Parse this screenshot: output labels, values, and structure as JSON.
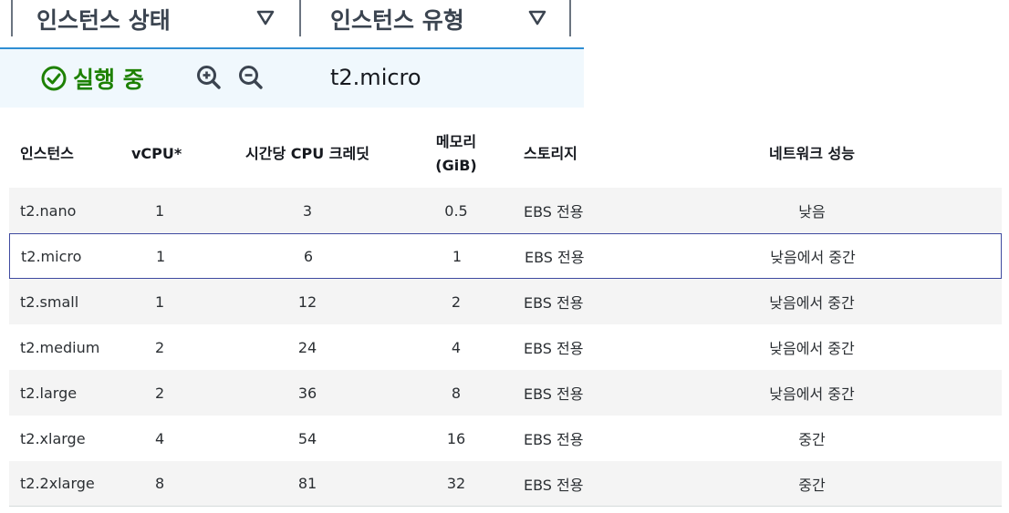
{
  "header": {
    "filters": [
      {
        "label": "인스턴스 상태"
      },
      {
        "label": "인스턴스 유형"
      }
    ]
  },
  "selected_instance": {
    "status": "실행 중",
    "status_color": "#1d8102",
    "status_icon": "check-circle-icon",
    "zoom_in_icon": "zoom-in-icon",
    "zoom_out_icon": "zoom-out-icon",
    "type": "t2.micro"
  },
  "table": {
    "columns": [
      {
        "label": "인스턴스"
      },
      {
        "label": "vCPU*"
      },
      {
        "label": "시간당 CPU 크레딧"
      },
      {
        "label": "메모리 (GiB)",
        "line1": "메모리",
        "line2": "(GiB)"
      },
      {
        "label": "스토리지"
      },
      {
        "label": "네트워크 성능"
      }
    ],
    "rows": [
      [
        "t2.nano",
        "1",
        "3",
        "0.5",
        "EBS 전용",
        "낮음"
      ],
      [
        "t2.micro",
        "1",
        "6",
        "1",
        "EBS 전용",
        "낮음에서 중간"
      ],
      [
        "t2.small",
        "1",
        "12",
        "2",
        "EBS 전용",
        "낮음에서 중간"
      ],
      [
        "t2.medium",
        "2",
        "24",
        "4",
        "EBS 전용",
        "낮음에서 중간"
      ],
      [
        "t2.large",
        "2",
        "36",
        "8",
        "EBS 전용",
        "낮음에서 중간"
      ],
      [
        "t2.xlarge",
        "4",
        "54",
        "16",
        "EBS 전용",
        "중간"
      ],
      [
        "t2.2xlarge",
        "8",
        "81",
        "32",
        "EBS 전용",
        "중간"
      ]
    ],
    "selected_row_index": 1
  },
  "colors": {
    "accent": "#2f8ed3",
    "selected_border": "#3f4aa0",
    "row_stripe": "#f4f4f4",
    "selected_strip_bg": "#f0f8fd"
  }
}
